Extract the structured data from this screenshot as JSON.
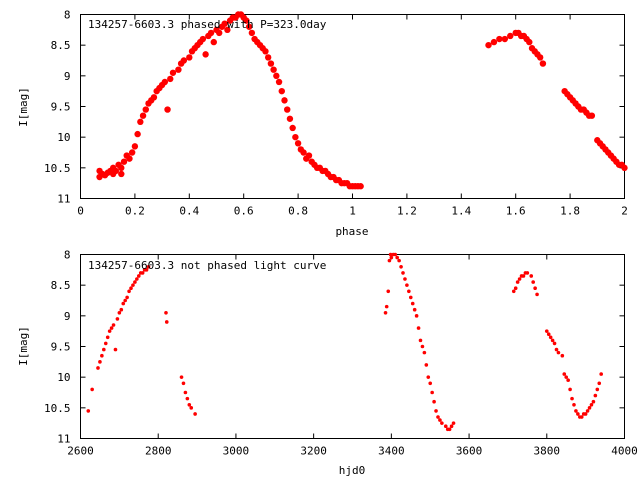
{
  "colors": {
    "points": "#ff0000",
    "frame": "#000000",
    "background": "#ffffff"
  },
  "chart_data": [
    {
      "type": "scatter",
      "title": "134257-6603.3 phased with P=323.0day",
      "xlabel": "phase",
      "ylabel": "I[mag]",
      "xlim": [
        0,
        2
      ],
      "ylim": [
        8,
        11
      ],
      "y_inverted": true,
      "grid": false,
      "marker": "filled circle (large)",
      "xticks": [
        "0",
        "0.2",
        "0.4",
        "0.6",
        "0.8",
        "1",
        "1.2",
        "1.4",
        "1.6",
        "1.8",
        "2"
      ],
      "yticks": [
        "8",
        "8.5",
        "9",
        "9.5",
        "10",
        "10.5",
        "11"
      ],
      "series": [
        {
          "x": [
            0.07,
            0.07,
            0.08,
            0.09,
            0.1,
            0.11,
            0.12,
            0.12,
            0.13,
            0.14,
            0.15,
            0.15,
            0.16,
            0.17,
            0.18,
            0.19,
            0.2,
            0.21,
            0.22,
            0.23,
            0.24,
            0.25,
            0.26,
            0.27,
            0.28,
            0.29,
            0.3,
            0.31,
            0.32,
            0.33,
            0.34,
            0.36,
            0.37,
            0.38,
            0.4,
            0.41,
            0.42,
            0.43,
            0.44,
            0.45,
            0.46,
            0.47,
            0.48,
            0.49,
            0.5,
            0.51,
            0.52,
            0.53,
            0.54,
            0.55,
            0.56,
            0.57,
            0.58,
            0.59,
            0.6,
            0.61,
            0.62,
            0.63,
            0.64,
            0.65,
            0.66,
            0.67,
            0.68,
            0.69,
            0.7,
            0.71,
            0.72,
            0.73,
            0.74,
            0.75,
            0.76,
            0.77,
            0.78,
            0.79,
            0.8,
            0.81,
            0.82,
            0.83,
            0.84,
            0.85,
            0.86,
            0.87,
            0.88,
            0.89,
            0.9,
            0.91,
            0.92,
            0.93,
            0.94,
            0.95,
            0.96,
            0.97,
            0.98,
            0.99,
            1.0,
            1.01,
            1.02,
            1.03,
            1.5,
            1.52,
            1.54,
            1.56,
            1.58,
            1.6,
            1.61,
            1.62,
            1.63,
            1.64,
            1.65,
            1.66,
            1.67,
            1.68,
            1.69,
            1.7,
            1.78,
            1.79,
            1.8,
            1.81,
            1.82,
            1.83,
            1.84,
            1.85,
            1.86,
            1.87,
            1.88,
            1.9,
            1.91,
            1.92,
            1.93,
            1.94,
            1.95,
            1.96,
            1.97,
            1.98,
            1.99,
            2.0
          ],
          "y": [
            10.65,
            10.55,
            10.6,
            10.62,
            10.58,
            10.55,
            10.6,
            10.5,
            10.55,
            10.45,
            10.5,
            10.6,
            10.4,
            10.3,
            10.35,
            10.25,
            10.15,
            9.95,
            9.75,
            9.65,
            9.55,
            9.45,
            9.4,
            9.35,
            9.25,
            9.2,
            9.15,
            9.1,
            9.55,
            9.05,
            8.95,
            8.9,
            8.8,
            8.75,
            8.7,
            8.6,
            8.55,
            8.5,
            8.45,
            8.4,
            8.65,
            8.35,
            8.3,
            8.45,
            8.25,
            8.3,
            8.2,
            8.15,
            8.25,
            8.1,
            8.05,
            8.05,
            8.0,
            8.0,
            8.05,
            8.1,
            8.2,
            8.3,
            8.4,
            8.45,
            8.5,
            8.55,
            8.6,
            8.7,
            8.8,
            8.9,
            9.0,
            9.1,
            9.25,
            9.4,
            9.55,
            9.7,
            9.85,
            10.0,
            10.1,
            10.2,
            10.25,
            10.35,
            10.3,
            10.4,
            10.45,
            10.5,
            10.5,
            10.55,
            10.55,
            10.6,
            10.65,
            10.65,
            10.7,
            10.7,
            10.75,
            10.75,
            10.75,
            10.8,
            10.8,
            10.8,
            10.8,
            10.8,
            8.5,
            8.45,
            8.4,
            8.4,
            8.35,
            8.3,
            8.3,
            8.35,
            8.35,
            8.4,
            8.45,
            8.55,
            8.6,
            8.65,
            8.7,
            8.8,
            9.25,
            9.3,
            9.35,
            9.4,
            9.45,
            9.5,
            9.55,
            9.55,
            9.6,
            9.65,
            9.65,
            10.05,
            10.1,
            10.15,
            10.2,
            10.25,
            10.3,
            10.35,
            10.4,
            10.45,
            10.45,
            10.5
          ]
        }
      ]
    },
    {
      "type": "scatter",
      "title": "134257-6603.3 not phased light curve",
      "xlabel": "hjd0",
      "ylabel": "I[mag]",
      "xlim": [
        2600,
        4000
      ],
      "ylim": [
        8,
        11
      ],
      "y_inverted": true,
      "grid": false,
      "marker": "filled circle (small)",
      "xticks": [
        "2600",
        "2800",
        "3000",
        "3200",
        "3400",
        "3600",
        "3800",
        "4000"
      ],
      "yticks": [
        "8",
        "8.5",
        "9",
        "9.5",
        "10",
        "10.5",
        "11"
      ],
      "series": [
        {
          "x": [
            2620,
            2630,
            2645,
            2650,
            2655,
            2660,
            2665,
            2670,
            2675,
            2680,
            2685,
            2690,
            2695,
            2700,
            2705,
            2710,
            2715,
            2720,
            2725,
            2730,
            2735,
            2740,
            2745,
            2750,
            2755,
            2760,
            2765,
            2770,
            2775,
            2820,
            2822,
            2860,
            2865,
            2870,
            2875,
            2880,
            2885,
            2895,
            3385,
            3388,
            3392,
            3395,
            3398,
            3400,
            3405,
            3410,
            3415,
            3420,
            3425,
            3430,
            3435,
            3440,
            3445,
            3450,
            3455,
            3460,
            3465,
            3470,
            3475,
            3480,
            3485,
            3490,
            3495,
            3500,
            3505,
            3510,
            3515,
            3520,
            3525,
            3530,
            3540,
            3545,
            3550,
            3555,
            3560,
            3715,
            3720,
            3725,
            3730,
            3735,
            3740,
            3745,
            3750,
            3760,
            3765,
            3770,
            3775,
            3800,
            3805,
            3810,
            3815,
            3820,
            3825,
            3830,
            3840,
            3845,
            3850,
            3855,
            3860,
            3865,
            3870,
            3875,
            3880,
            3885,
            3890,
            3895,
            3900,
            3905,
            3910,
            3915,
            3920,
            3925,
            3930,
            3935,
            3940
          ],
          "y": [
            10.55,
            10.2,
            9.85,
            9.75,
            9.65,
            9.55,
            9.45,
            9.35,
            9.25,
            9.2,
            9.15,
            9.55,
            9.05,
            8.95,
            8.9,
            8.8,
            8.75,
            8.7,
            8.6,
            8.55,
            8.5,
            8.45,
            8.4,
            8.35,
            8.3,
            8.3,
            8.25,
            8.25,
            8.2,
            8.95,
            9.1,
            10.0,
            10.1,
            10.25,
            10.35,
            10.45,
            10.5,
            10.6,
            8.95,
            8.85,
            8.6,
            8.1,
            8.0,
            8.05,
            8.0,
            8.0,
            8.05,
            8.1,
            8.2,
            8.3,
            8.4,
            8.5,
            8.6,
            8.7,
            8.8,
            8.9,
            9.0,
            9.2,
            9.4,
            9.5,
            9.6,
            9.8,
            10.0,
            10.1,
            10.25,
            10.4,
            10.55,
            10.65,
            10.7,
            10.75,
            10.8,
            10.85,
            10.85,
            10.8,
            10.75,
            8.6,
            8.55,
            8.45,
            8.4,
            8.35,
            8.35,
            8.3,
            8.3,
            8.35,
            8.45,
            8.55,
            8.65,
            9.25,
            9.3,
            9.35,
            9.4,
            9.45,
            9.55,
            9.6,
            9.65,
            9.95,
            10.0,
            10.05,
            10.2,
            10.35,
            10.45,
            10.55,
            10.6,
            10.65,
            10.65,
            10.6,
            10.6,
            10.55,
            10.5,
            10.45,
            10.4,
            10.3,
            10.2,
            10.1,
            9.95
          ]
        }
      ]
    }
  ]
}
